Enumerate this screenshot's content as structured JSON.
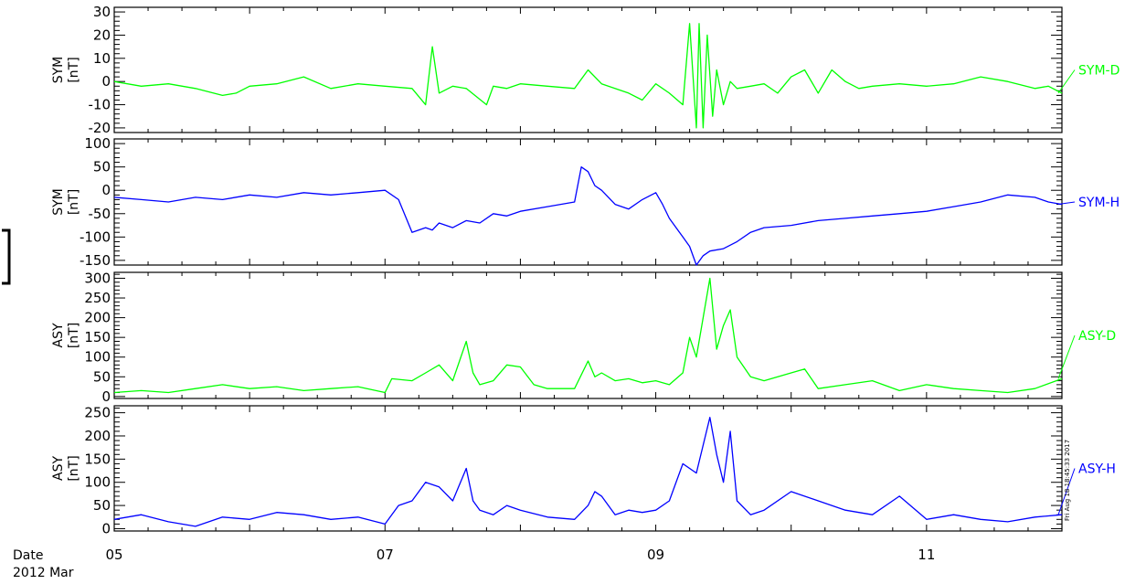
{
  "chart_data": [
    {
      "type": "line",
      "ylabel": [
        "SYM",
        "[nT]"
      ],
      "series": [
        {
          "name": "SYM-D",
          "color": "#00ff00",
          "x": [
            5.0,
            5.2,
            5.4,
            5.6,
            5.8,
            5.9,
            6.0,
            6.2,
            6.4,
            6.6,
            6.8,
            7.0,
            7.2,
            7.3,
            7.35,
            7.4,
            7.5,
            7.6,
            7.75,
            7.8,
            7.9,
            8.0,
            8.2,
            8.4,
            8.5,
            8.6,
            8.8,
            8.9,
            9.0,
            9.1,
            9.2,
            9.25,
            9.3,
            9.32,
            9.35,
            9.38,
            9.42,
            9.45,
            9.5,
            9.55,
            9.6,
            9.7,
            9.8,
            9.9,
            10.0,
            10.1,
            10.2,
            10.3,
            10.4,
            10.5,
            10.6,
            10.8,
            11.0,
            11.2,
            11.4,
            11.6,
            11.8,
            11.9,
            12.0
          ],
          "y": [
            0,
            -2,
            -1,
            -3,
            -6,
            -5,
            -2,
            -1,
            2,
            -3,
            -1,
            -2,
            -3,
            -10,
            15,
            -5,
            -2,
            -3,
            -10,
            -2,
            -3,
            -1,
            -2,
            -3,
            5,
            -1,
            -5,
            -8,
            -1,
            -5,
            -10,
            25,
            -20,
            25,
            -20,
            20,
            -15,
            5,
            -10,
            0,
            -3,
            -2,
            -1,
            -5,
            2,
            5,
            -5,
            5,
            0,
            -3,
            -2,
            -1,
            -2,
            -1,
            2,
            0,
            -3,
            -2,
            -5
          ]
        }
      ],
      "ylim": [
        -22,
        32
      ],
      "yticks": [
        -20,
        -10,
        0,
        10,
        20,
        30
      ],
      "label_side": "right"
    },
    {
      "type": "line",
      "ylabel": [
        "SYM",
        "[nT]"
      ],
      "series": [
        {
          "name": "SYM-H",
          "color": "#0000ff",
          "x": [
            5.0,
            5.2,
            5.4,
            5.6,
            5.8,
            6.0,
            6.2,
            6.4,
            6.6,
            6.8,
            7.0,
            7.1,
            7.2,
            7.3,
            7.35,
            7.4,
            7.5,
            7.6,
            7.7,
            7.8,
            7.9,
            8.0,
            8.2,
            8.4,
            8.45,
            8.5,
            8.55,
            8.6,
            8.7,
            8.8,
            8.9,
            9.0,
            9.05,
            9.1,
            9.2,
            9.25,
            9.3,
            9.35,
            9.4,
            9.5,
            9.6,
            9.7,
            9.8,
            10.0,
            10.2,
            10.4,
            10.6,
            10.8,
            11.0,
            11.2,
            11.4,
            11.6,
            11.8,
            11.9,
            12.0
          ],
          "y": [
            -15,
            -20,
            -25,
            -15,
            -20,
            -10,
            -15,
            -5,
            -10,
            -5,
            0,
            -20,
            -90,
            -80,
            -85,
            -70,
            -80,
            -65,
            -70,
            -50,
            -55,
            -45,
            -35,
            -25,
            50,
            40,
            10,
            0,
            -30,
            -40,
            -20,
            -5,
            -30,
            -60,
            -100,
            -120,
            -160,
            -140,
            -130,
            -125,
            -110,
            -90,
            -80,
            -75,
            -65,
            -60,
            -55,
            -50,
            -45,
            -35,
            -25,
            -10,
            -15,
            -25,
            -30
          ]
        }
      ],
      "ylim": [
        -160,
        110
      ],
      "yticks": [
        -150,
        -100,
        -50,
        0,
        50,
        100
      ],
      "label_side": "right"
    },
    {
      "type": "line",
      "ylabel": [
        "ASY",
        "[nT]"
      ],
      "series": [
        {
          "name": "ASY-D",
          "color": "#00ff00",
          "x": [
            5.0,
            5.2,
            5.4,
            5.6,
            5.8,
            6.0,
            6.2,
            6.4,
            6.6,
            6.8,
            7.0,
            7.05,
            7.2,
            7.3,
            7.4,
            7.5,
            7.55,
            7.6,
            7.65,
            7.7,
            7.8,
            7.9,
            8.0,
            8.1,
            8.2,
            8.4,
            8.5,
            8.55,
            8.6,
            8.7,
            8.8,
            8.9,
            9.0,
            9.1,
            9.2,
            9.25,
            9.3,
            9.35,
            9.4,
            9.45,
            9.5,
            9.55,
            9.6,
            9.7,
            9.8,
            10.0,
            10.1,
            10.2,
            10.4,
            10.6,
            10.8,
            11.0,
            11.2,
            11.4,
            11.6,
            11.8,
            12.0
          ],
          "y": [
            10,
            15,
            10,
            20,
            30,
            20,
            25,
            15,
            20,
            25,
            10,
            45,
            40,
            60,
            80,
            40,
            90,
            140,
            60,
            30,
            40,
            80,
            75,
            30,
            20,
            20,
            90,
            50,
            60,
            40,
            45,
            35,
            40,
            30,
            60,
            150,
            100,
            200,
            300,
            120,
            180,
            220,
            100,
            50,
            40,
            60,
            70,
            20,
            30,
            40,
            15,
            30,
            20,
            15,
            10,
            20,
            45
          ]
        }
      ],
      "ylim": [
        -5,
        315
      ],
      "yticks": [
        0,
        50,
        100,
        150,
        200,
        250,
        300
      ],
      "label_side": "right"
    },
    {
      "type": "line",
      "ylabel": [
        "ASY",
        "[nT]"
      ],
      "series": [
        {
          "name": "ASY-H",
          "color": "#0000ff",
          "x": [
            5.0,
            5.2,
            5.4,
            5.6,
            5.8,
            6.0,
            6.2,
            6.4,
            6.6,
            6.8,
            7.0,
            7.1,
            7.2,
            7.3,
            7.4,
            7.5,
            7.6,
            7.65,
            7.7,
            7.8,
            7.9,
            8.0,
            8.2,
            8.4,
            8.5,
            8.55,
            8.6,
            8.7,
            8.8,
            8.9,
            9.0,
            9.1,
            9.2,
            9.3,
            9.35,
            9.4,
            9.45,
            9.5,
            9.55,
            9.6,
            9.7,
            9.8,
            10.0,
            10.2,
            10.4,
            10.6,
            10.8,
            11.0,
            11.2,
            11.4,
            11.6,
            11.8,
            12.0
          ],
          "y": [
            20,
            30,
            15,
            5,
            25,
            20,
            35,
            30,
            20,
            25,
            10,
            50,
            60,
            100,
            90,
            60,
            130,
            60,
            40,
            30,
            50,
            40,
            25,
            20,
            50,
            80,
            70,
            30,
            40,
            35,
            40,
            60,
            140,
            120,
            180,
            240,
            160,
            100,
            210,
            60,
            30,
            40,
            80,
            60,
            40,
            30,
            70,
            20,
            30,
            20,
            15,
            25,
            30
          ]
        }
      ],
      "ylim": [
        -5,
        265
      ],
      "yticks": [
        0,
        50,
        100,
        150,
        200,
        250
      ],
      "label_side": "right"
    }
  ],
  "xaxis": {
    "range": [
      5,
      12
    ],
    "tick_labels": [
      {
        "x": 5,
        "label": "05"
      },
      {
        "x": 7,
        "label": "07"
      },
      {
        "x": 9,
        "label": "09"
      },
      {
        "x": 11,
        "label": "11"
      }
    ],
    "minor_step": 0.25
  },
  "footer": {
    "date_label": "Date",
    "date_value": "2012 Mar"
  },
  "timestamp": "Fri Aug 18 18:45:33 2017"
}
